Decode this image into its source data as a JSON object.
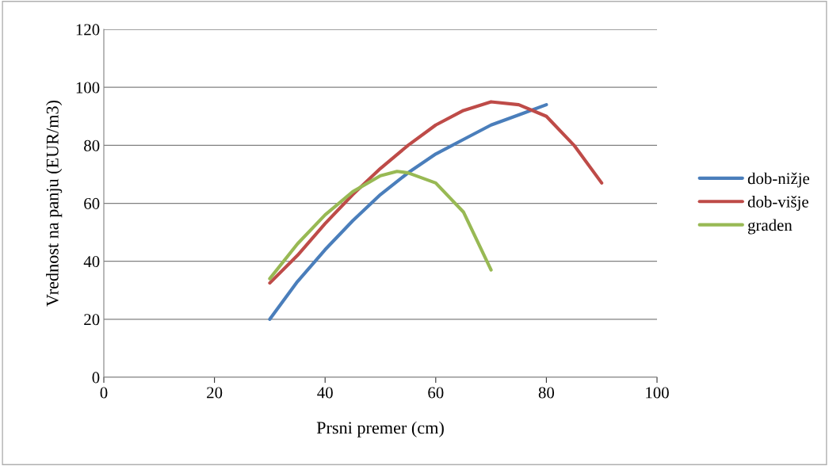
{
  "chart_data": {
    "type": "line",
    "xlabel": "Prsni premer (cm)",
    "ylabel": "Vrednost na panju (EUR/m3)",
    "xlim": [
      0,
      100
    ],
    "xticks": [
      0,
      20,
      40,
      60,
      80,
      100
    ],
    "ylim": [
      0,
      120
    ],
    "yticks": [
      0,
      20,
      40,
      60,
      80,
      100,
      120
    ],
    "grid": "y",
    "legend": "right",
    "marker": "none",
    "line_style": "solid",
    "series": [
      {
        "name": "dob-nižje",
        "color": "#4a7ebb",
        "x": [
          30,
          35,
          40,
          45,
          50,
          55,
          60,
          65,
          70,
          75,
          80
        ],
        "values": [
          20,
          33,
          44,
          54,
          63,
          70.5,
          77,
          82,
          87,
          90.5,
          94
        ]
      },
      {
        "name": "dob-višje",
        "color": "#be4b48",
        "x": [
          30,
          35,
          40,
          45,
          50,
          55,
          60,
          65,
          70,
          75,
          80,
          85,
          90
        ],
        "values": [
          32.5,
          42,
          53,
          63,
          72,
          80,
          87,
          92,
          95,
          94,
          90,
          80,
          67
        ]
      },
      {
        "name": "graden",
        "color": "#98b954",
        "x": [
          30,
          35,
          40,
          45,
          50,
          53,
          55,
          60,
          65,
          70
        ],
        "values": [
          34,
          46,
          56,
          64,
          69.5,
          71,
          70.5,
          67,
          57,
          37
        ]
      }
    ]
  }
}
